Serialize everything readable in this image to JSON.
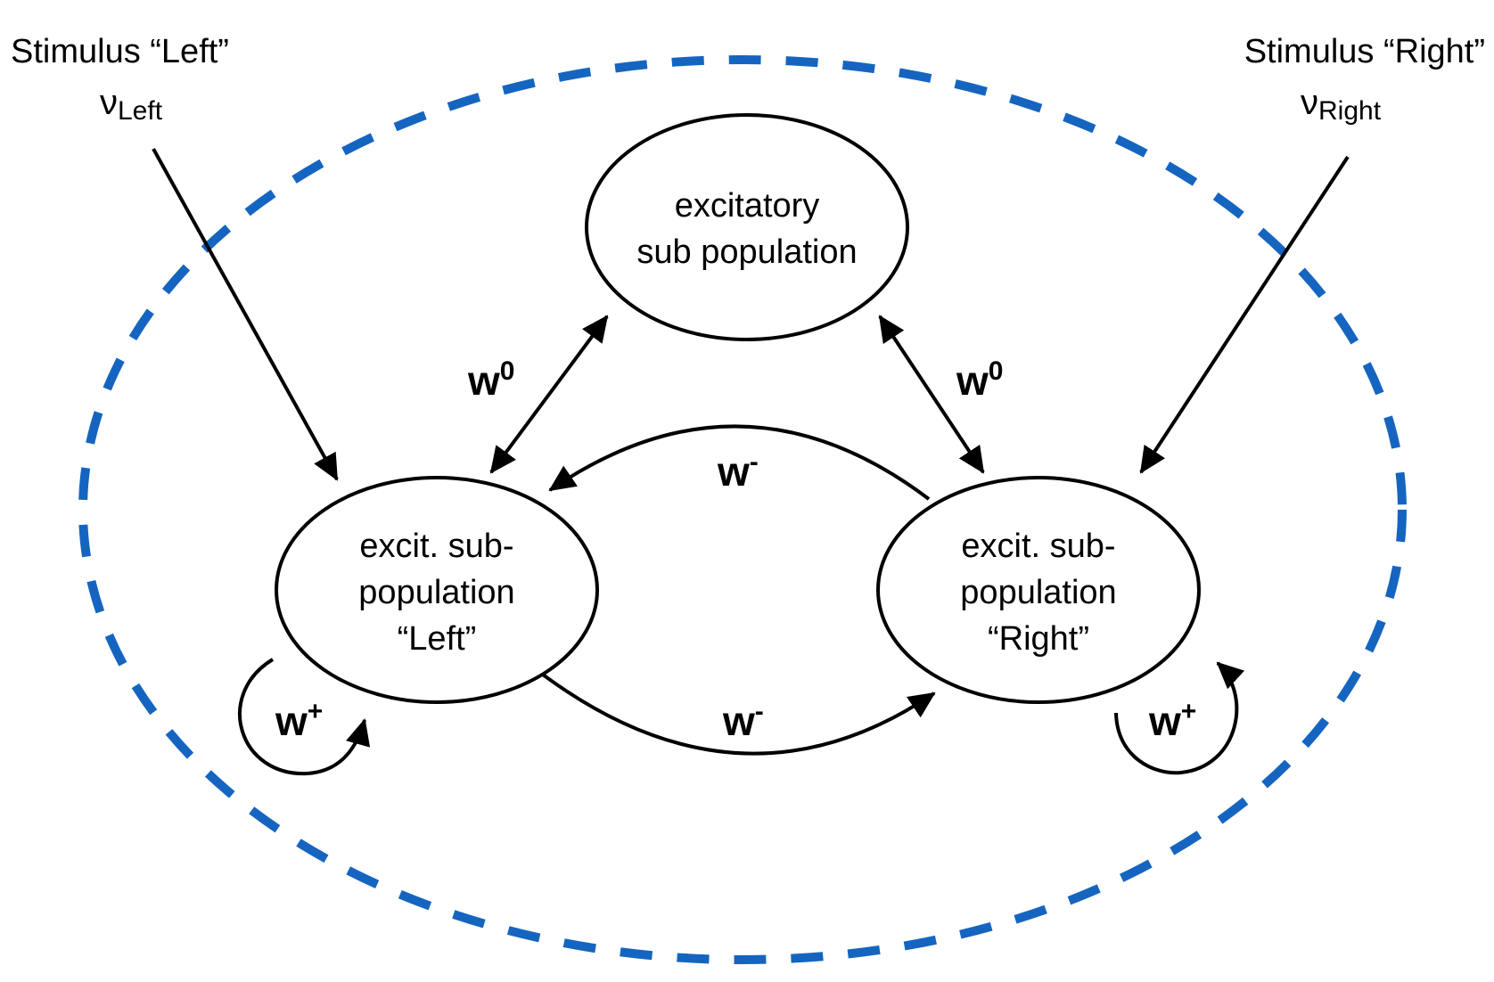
{
  "diagram": {
    "colors": {
      "network_boundary": "#1565C0",
      "stroke": "#000000",
      "background": "#ffffff"
    },
    "stimulus_left": {
      "label": "Stimulus “Left”",
      "rate_symbol": "ν",
      "rate_subscript": "Left"
    },
    "stimulus_right": {
      "label": "Stimulus “Right”",
      "rate_symbol": "ν",
      "rate_subscript": "Right"
    },
    "node_top": {
      "line1": "excitatory",
      "line2": "sub population"
    },
    "node_left": {
      "line1": "excit. sub-",
      "line2": "population",
      "line3": "“Left”"
    },
    "node_right": {
      "line1": "excit. sub-",
      "line2": "population",
      "line3": "“Right”"
    },
    "weights": {
      "w0_left": {
        "base": "w",
        "sup": "0"
      },
      "w0_right": {
        "base": "w",
        "sup": "0"
      },
      "wminus_top": {
        "base": "w",
        "sup": "-"
      },
      "wminus_bottom": {
        "base": "w",
        "sup": "-"
      },
      "wplus_left": {
        "base": "w",
        "sup": "+"
      },
      "wplus_right": {
        "base": "w",
        "sup": "+"
      }
    }
  }
}
